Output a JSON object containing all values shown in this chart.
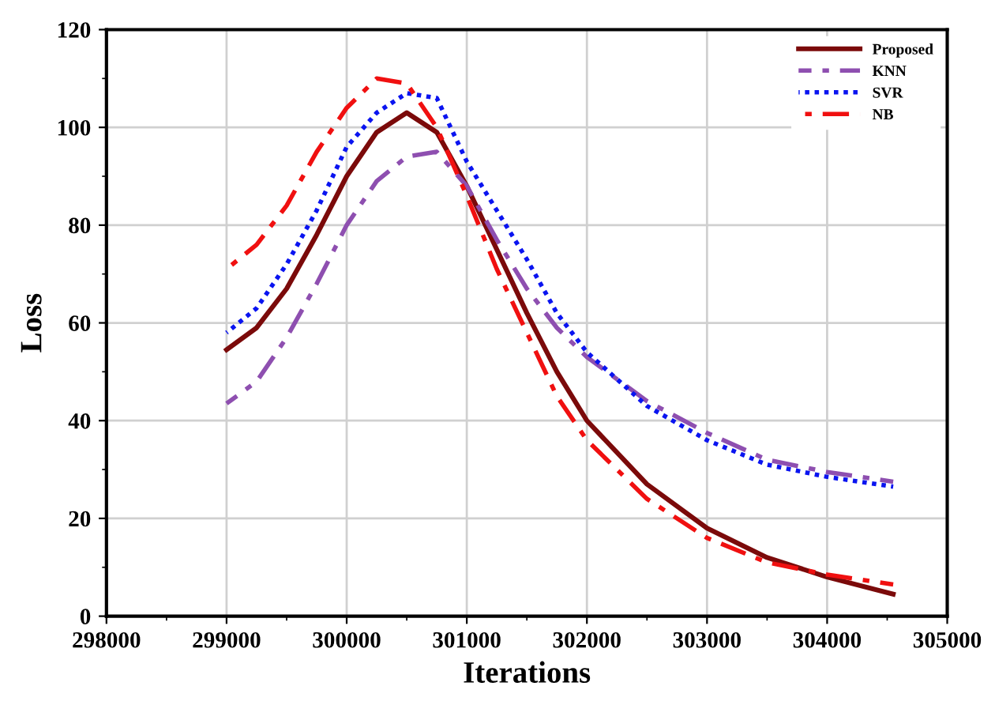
{
  "chart_data": {
    "type": "line",
    "xlabel": "Iterations",
    "ylabel": "Loss",
    "xlim": [
      298000,
      305000
    ],
    "xticks": [
      298000,
      299000,
      300000,
      301000,
      302000,
      303000,
      304000,
      305000
    ],
    "ylim": [
      0,
      120
    ],
    "yticks": [
      0,
      20,
      40,
      60,
      80,
      100,
      120
    ],
    "grid": true,
    "legend": "top right",
    "marker": "none",
    "x": [
      299000,
      299250,
      299500,
      299750,
      300000,
      300250,
      300500,
      300750,
      301000,
      301250,
      301500,
      301750,
      302000,
      302500,
      303000,
      303500,
      304000,
      304550
    ],
    "series": [
      {
        "name": "Proposed",
        "color": "#7b0a0a",
        "line_style": "solid",
        "values": [
          54.5,
          59,
          67,
          78,
          90,
          99,
          103,
          99,
          88,
          75,
          62,
          50,
          40,
          27,
          18,
          12,
          8,
          4.5
        ]
      },
      {
        "name": "KNN",
        "color": "#8e4fb0",
        "line_style": "dashdot",
        "values": [
          43.5,
          48,
          57,
          68,
          80,
          89,
          94,
          95,
          88,
          77,
          67,
          59,
          53,
          44,
          37.5,
          32,
          29.5,
          27.5
        ]
      },
      {
        "name": "SVR",
        "color": "#0a14f0",
        "line_style": "dotted",
        "values": [
          58,
          63,
          72,
          83,
          96,
          103,
          107,
          106,
          93,
          83,
          73,
          62,
          54,
          43,
          36,
          31,
          28.5,
          26.5
        ]
      },
      {
        "name": "NB",
        "color": "#f01010",
        "line_style": "dashdot",
        "values": [
          71,
          76,
          84,
          95,
          104,
          110,
          109,
          100,
          86,
          71,
          58,
          45,
          36,
          24,
          16,
          11,
          8.5,
          6.5
        ]
      }
    ]
  }
}
